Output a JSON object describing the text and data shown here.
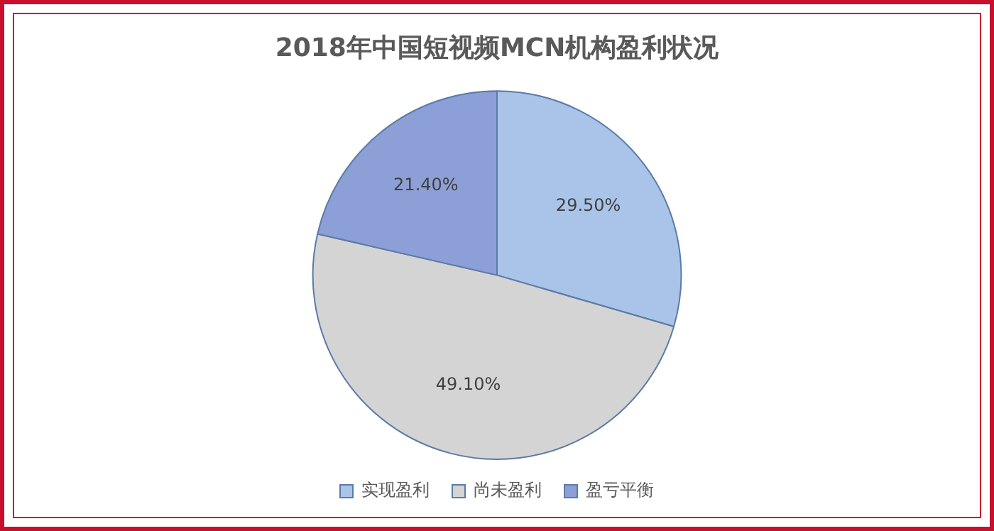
{
  "chart_data": {
    "type": "pie",
    "title": "2018年中国短视频MCN机构盈利状况",
    "categories": [
      "实现盈利",
      "尚未盈利",
      "盈亏平衡"
    ],
    "values": [
      29.5,
      49.1,
      21.4
    ],
    "colors": [
      "#a9c4e8",
      "#d4d4d4",
      "#8c9fd6"
    ],
    "value_labels": [
      "29.50%",
      "49.10%",
      "21.40%"
    ],
    "legend": "bottom"
  }
}
